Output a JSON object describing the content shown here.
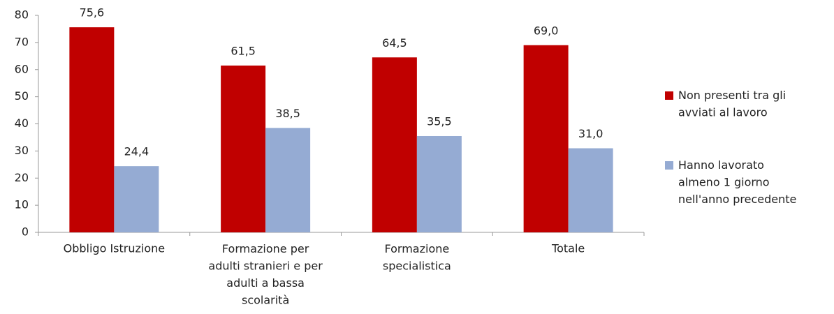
{
  "chart_data": {
    "type": "bar",
    "categories": [
      "Obbligo Istruzione",
      "Formazione per\nadulti stranieri e per\nadulti a bassa\nscolarità",
      "Formazione\nspecialistica",
      "Totale"
    ],
    "series": [
      {
        "name": "Non presenti tra gli\navviati al lavoro",
        "color": "#c00000",
        "values": [
          75.6,
          61.5,
          64.5,
          69.0
        ],
        "value_labels": [
          "75,6",
          "61,5",
          "64,5",
          "69,0"
        ]
      },
      {
        "name": "Hanno lavorato\nalmeno 1 giorno\nnell'anno precedente",
        "color": "#95abd3",
        "values": [
          24.4,
          38.5,
          35.5,
          31.0
        ],
        "value_labels": [
          "24,4",
          "38,5",
          "35,5",
          "31,0"
        ]
      }
    ],
    "ylim": [
      0,
      80
    ],
    "yticks": [
      0,
      10,
      20,
      30,
      40,
      50,
      60,
      70,
      80
    ],
    "grid": false,
    "legend": "right"
  }
}
